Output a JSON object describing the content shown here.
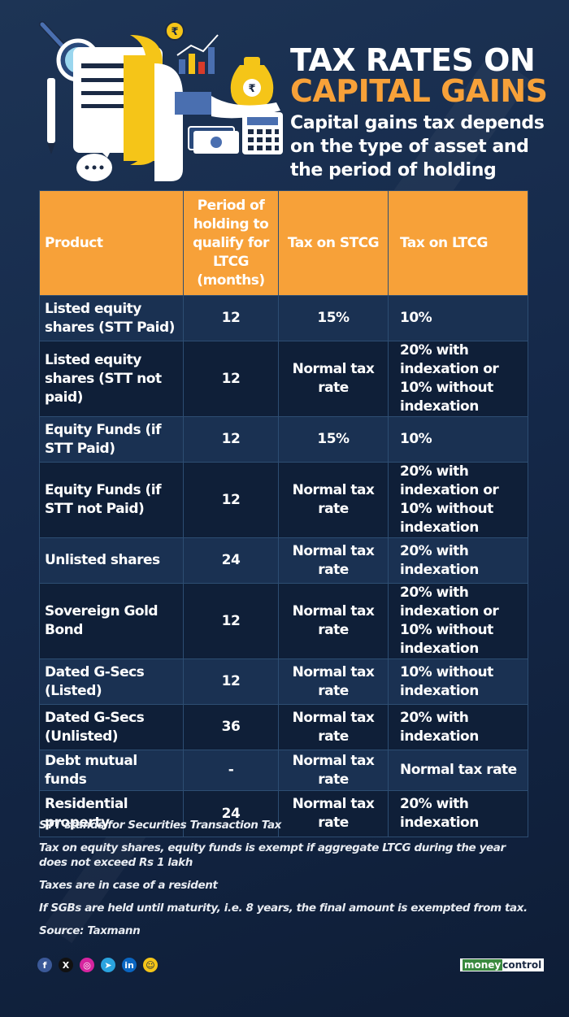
{
  "header": {
    "title_line1": "TAX RATES ON",
    "title_line2": "CAPITAL GAINS",
    "subtitle": "Capital gains tax depends on the type of asset and the period of holding"
  },
  "table": {
    "columns": [
      "Product",
      "Period of holding to qualify for LTCG (months)",
      "Tax on STCG",
      "Tax on LTCG"
    ],
    "rows": [
      [
        "Listed equity shares (STT Paid)",
        "12",
        "15%",
        "10%"
      ],
      [
        "Listed equity shares (STT not paid)",
        "12",
        "Normal tax rate",
        "20% with indexation or 10% without indexation"
      ],
      [
        "Equity Funds (if STT Paid)",
        "12",
        "15%",
        "10%"
      ],
      [
        "Equity Funds (if STT not Paid)",
        "12",
        "Normal tax rate",
        "20% with indexation or 10% without indexation"
      ],
      [
        "Unlisted shares",
        "24",
        "Normal tax rate",
        "20% with indexation"
      ],
      [
        "Sovereign Gold Bond",
        "12",
        "Normal tax rate",
        "20% with indexation or 10% without indexation"
      ],
      [
        "Dated G-Secs (Listed)",
        "12",
        "Normal tax rate",
        "10% without indexation"
      ],
      [
        "Dated G-Secs (Unlisted)",
        "36",
        "Normal tax rate",
        "20% with indexation"
      ],
      [
        "Debt mutual funds",
        "-",
        "Normal tax rate",
        "Normal tax rate"
      ],
      [
        "Residential property",
        "24",
        "Normal tax rate",
        "20% with indexation"
      ]
    ]
  },
  "notes": [
    "STT stands for Securities Transaction Tax",
    "Tax on equity shares, equity funds is exempt if aggregate LTCG during the year does not exceed Rs 1 lakh",
    "Taxes are in case of a resident",
    "If SGBs are held until maturity, i.e. 8 years, the final amount is exempted from tax.",
    "Source: Taxmann"
  ],
  "social": [
    {
      "icon": "facebook-icon",
      "glyph": "f",
      "color": "#3b5998"
    },
    {
      "icon": "x-icon",
      "glyph": "X",
      "color": "#111111"
    },
    {
      "icon": "instagram-icon",
      "glyph": "◎",
      "color": "#d6249f"
    },
    {
      "icon": "telegram-icon",
      "glyph": "➤",
      "color": "#2aa3df"
    },
    {
      "icon": "linkedin-icon",
      "glyph": "in",
      "color": "#0a66c2"
    },
    {
      "icon": "snapchat-icon",
      "glyph": "☺",
      "color": "#f5c518"
    }
  ],
  "brand": {
    "part1": "money",
    "part2": "control"
  },
  "colors": {
    "accent": "#f7a139",
    "background": "#15294a",
    "header_fill": "#f7a139"
  },
  "illustration_icons": [
    "magnifier-icon",
    "document-icon",
    "rupee-coin-icon",
    "bar-chart-icon",
    "money-bag-icon",
    "hand-icon",
    "cash-icon",
    "calculator-icon",
    "speech-bubble-icon",
    "pen-icon"
  ]
}
